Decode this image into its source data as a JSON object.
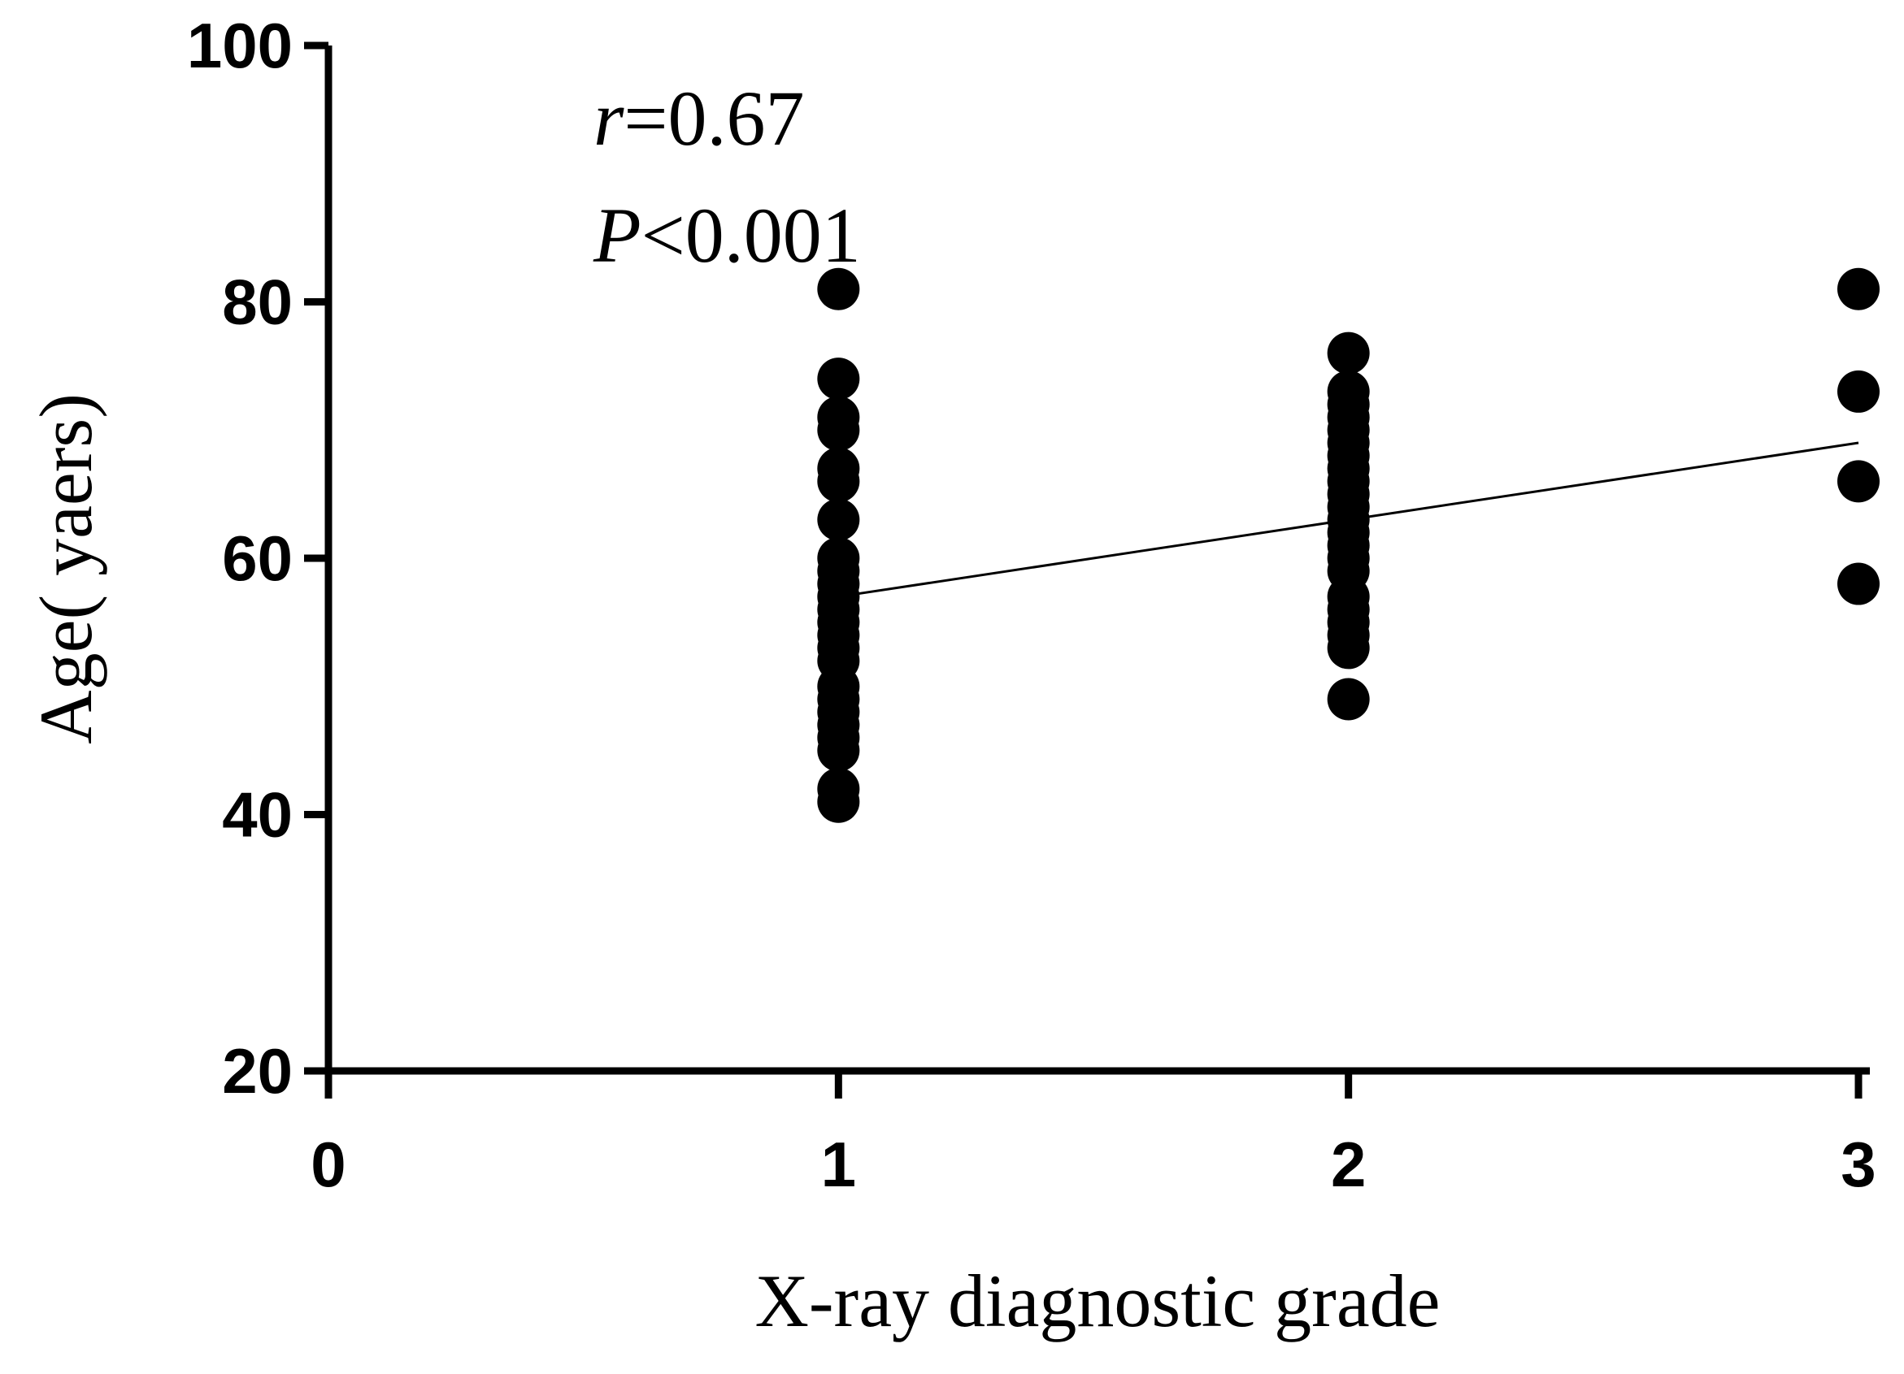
{
  "chart_data": {
    "type": "scatter",
    "title": "",
    "xlabel": "X-ray diagnostic grade",
    "ylabel": "Age( yaers)",
    "xlim": [
      0,
      3
    ],
    "ylim": [
      20,
      100
    ],
    "x_ticks": [
      "0",
      "1",
      "2",
      "3"
    ],
    "y_ticks": [
      "20",
      "40",
      "60",
      "80",
      "100"
    ],
    "grid": false,
    "legend": "none",
    "annotations": {
      "r_symbol": "r",
      "r_value": "=0.67",
      "p_symbol": "P",
      "p_value": "<0.001"
    },
    "series": [
      {
        "points": [
          {
            "x": 1,
            "y": 81
          },
          {
            "x": 1,
            "y": 74
          },
          {
            "x": 1,
            "y": 71
          },
          {
            "x": 1,
            "y": 70
          },
          {
            "x": 1,
            "y": 67
          },
          {
            "x": 1,
            "y": 66
          },
          {
            "x": 1,
            "y": 63
          },
          {
            "x": 1,
            "y": 60
          },
          {
            "x": 1,
            "y": 59
          },
          {
            "x": 1,
            "y": 58
          },
          {
            "x": 1,
            "y": 57
          },
          {
            "x": 1,
            "y": 56
          },
          {
            "x": 1,
            "y": 55
          },
          {
            "x": 1,
            "y": 54
          },
          {
            "x": 1,
            "y": 53
          },
          {
            "x": 1,
            "y": 52
          },
          {
            "x": 1,
            "y": 50
          },
          {
            "x": 1,
            "y": 49
          },
          {
            "x": 1,
            "y": 48
          },
          {
            "x": 1,
            "y": 47
          },
          {
            "x": 1,
            "y": 46
          },
          {
            "x": 1,
            "y": 45
          },
          {
            "x": 1,
            "y": 42
          },
          {
            "x": 1,
            "y": 41
          },
          {
            "x": 2,
            "y": 76
          },
          {
            "x": 2,
            "y": 73
          },
          {
            "x": 2,
            "y": 72
          },
          {
            "x": 2,
            "y": 71
          },
          {
            "x": 2,
            "y": 70
          },
          {
            "x": 2,
            "y": 69
          },
          {
            "x": 2,
            "y": 68
          },
          {
            "x": 2,
            "y": 67
          },
          {
            "x": 2,
            "y": 66
          },
          {
            "x": 2,
            "y": 65
          },
          {
            "x": 2,
            "y": 64
          },
          {
            "x": 2,
            "y": 63
          },
          {
            "x": 2,
            "y": 62
          },
          {
            "x": 2,
            "y": 61
          },
          {
            "x": 2,
            "y": 60
          },
          {
            "x": 2,
            "y": 59
          },
          {
            "x": 2,
            "y": 57
          },
          {
            "x": 2,
            "y": 56
          },
          {
            "x": 2,
            "y": 55
          },
          {
            "x": 2,
            "y": 54
          },
          {
            "x": 2,
            "y": 53
          },
          {
            "x": 2,
            "y": 49
          },
          {
            "x": 3,
            "y": 81
          },
          {
            "x": 3,
            "y": 73
          },
          {
            "x": 3,
            "y": 66
          },
          {
            "x": 3,
            "y": 58
          }
        ]
      }
    ],
    "trend_line": {
      "start": {
        "x": 1,
        "y": 57
      },
      "end": {
        "x": 3,
        "y": 69
      }
    },
    "colors": {
      "marker": "#000000",
      "axis": "#000000",
      "line": "#000000"
    }
  }
}
